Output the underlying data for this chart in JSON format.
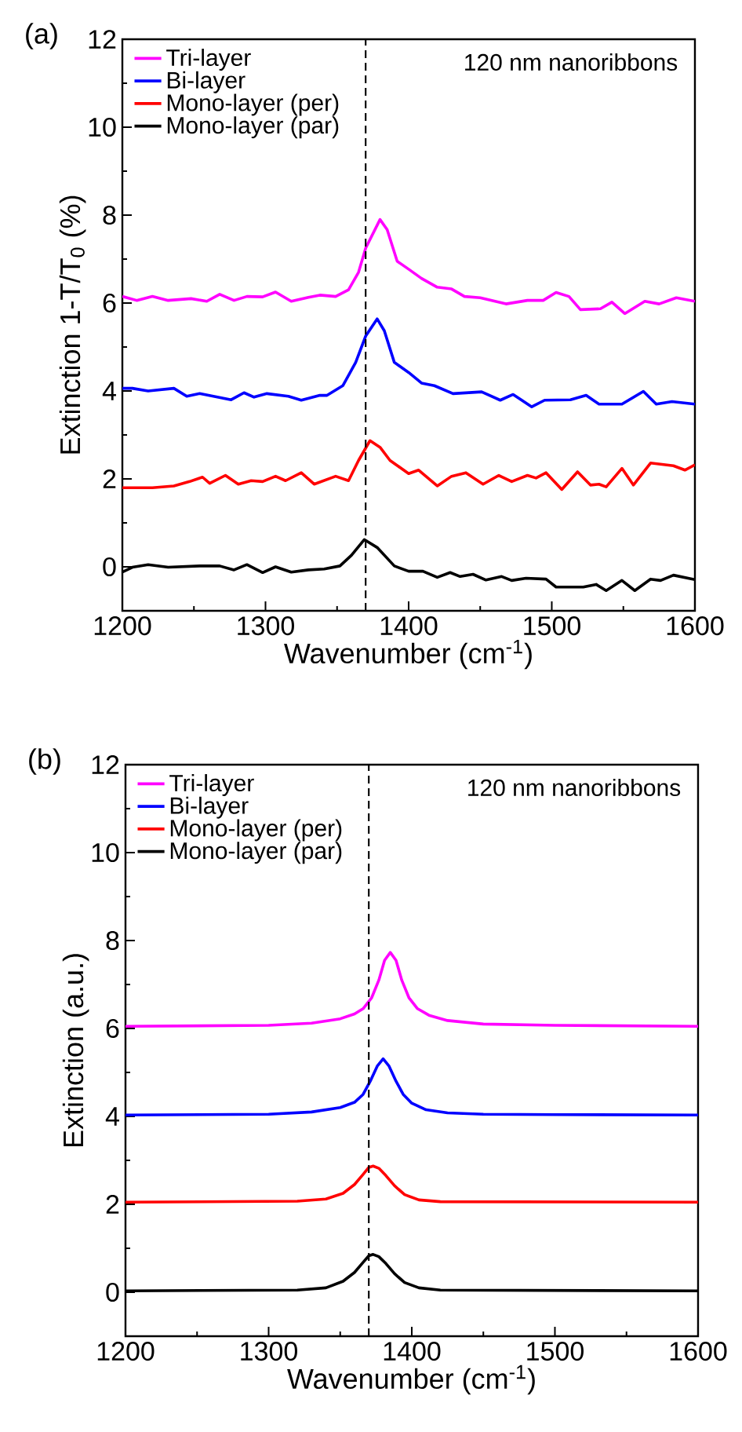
{
  "chart_data": [
    {
      "type": "line",
      "title": "(a)",
      "xlabel": "Wavenumber (cm$^{-1}$)",
      "ylabel": "Extinction 1-T/T$_{0}$ (%)",
      "xlim": [
        1200,
        1600
      ],
      "ylim": [
        -1,
        12
      ],
      "xticks": [
        1200,
        1300,
        1400,
        1500,
        1600
      ],
      "yticks": [
        0,
        2,
        4,
        6,
        8,
        10,
        12
      ],
      "legend": "top left",
      "line_style": "solid",
      "annotations": [
        "120 nm nanoribbons"
      ],
      "ref_lines": [
        {
          "axis": "x",
          "value": 1370,
          "color": "#000000",
          "line_style": "dashed"
        }
      ],
      "series": [
        {
          "name": "Tri-layer",
          "color": "#ff00ff",
          "x": [
            1200,
            1210,
            1221,
            1232,
            1248,
            1259,
            1268,
            1278,
            1287,
            1298,
            1307,
            1318,
            1330,
            1338,
            1349,
            1358,
            1365,
            1370,
            1380,
            1385,
            1392,
            1400,
            1409,
            1420,
            1430,
            1439,
            1450,
            1468,
            1483,
            1494,
            1503,
            1512,
            1520,
            1534,
            1542,
            1551,
            1565,
            1575,
            1587,
            1600
          ],
          "values": [
            6.15,
            6.06,
            6.15,
            6.06,
            6.1,
            6.04,
            6.2,
            6.06,
            6.15,
            6.14,
            6.25,
            6.04,
            6.13,
            6.18,
            6.15,
            6.3,
            6.7,
            7.25,
            7.9,
            7.67,
            6.95,
            6.77,
            6.56,
            6.36,
            6.32,
            6.15,
            6.12,
            5.98,
            6.06,
            6.06,
            6.24,
            6.15,
            5.85,
            5.87,
            6.02,
            5.76,
            6.04,
            5.98,
            6.12,
            6.04
          ]
        },
        {
          "name": "Bi-layer",
          "color": "#0000ff",
          "x": [
            1200,
            1207,
            1218,
            1236,
            1245,
            1254,
            1276,
            1285,
            1292,
            1301,
            1316,
            1325,
            1338,
            1343,
            1354,
            1363,
            1370,
            1378,
            1383,
            1390,
            1400,
            1409,
            1418,
            1431,
            1451,
            1464,
            1473,
            1486,
            1495,
            1513,
            1524,
            1533,
            1549,
            1564,
            1573,
            1584,
            1600
          ],
          "values": [
            4.06,
            4.06,
            4.0,
            4.06,
            3.88,
            3.94,
            3.8,
            3.96,
            3.86,
            3.94,
            3.88,
            3.79,
            3.9,
            3.9,
            4.12,
            4.65,
            5.25,
            5.64,
            5.37,
            4.65,
            4.42,
            4.18,
            4.12,
            3.94,
            3.98,
            3.79,
            3.92,
            3.64,
            3.79,
            3.8,
            3.9,
            3.7,
            3.7,
            3.99,
            3.7,
            3.76,
            3.7
          ]
        },
        {
          "name": "Mono-layer (per)",
          "color": "#ff0000",
          "x": [
            1200,
            1221,
            1236,
            1247,
            1256,
            1261,
            1272,
            1281,
            1290,
            1298,
            1307,
            1314,
            1325,
            1334,
            1349,
            1358,
            1365,
            1373,
            1380,
            1387,
            1400,
            1407,
            1420,
            1430,
            1440,
            1452,
            1463,
            1472,
            1483,
            1489,
            1496,
            1507,
            1518,
            1527,
            1533,
            1538,
            1549,
            1557,
            1569,
            1585,
            1593,
            1600
          ],
          "values": [
            1.8,
            1.8,
            1.84,
            1.94,
            2.04,
            1.9,
            2.08,
            1.88,
            1.96,
            1.94,
            2.06,
            1.96,
            2.14,
            1.88,
            2.06,
            1.96,
            2.42,
            2.87,
            2.72,
            2.42,
            2.12,
            2.2,
            1.84,
            2.06,
            2.14,
            1.88,
            2.08,
            1.94,
            2.08,
            2.02,
            2.14,
            1.76,
            2.16,
            1.86,
            1.88,
            1.82,
            2.24,
            1.86,
            2.36,
            2.3,
            2.2,
            2.32
          ]
        },
        {
          "name": "Mono-layer (par)",
          "color": "#000000",
          "x": [
            1200,
            1207,
            1218,
            1232,
            1254,
            1268,
            1278,
            1287,
            1298,
            1307,
            1318,
            1330,
            1341,
            1352,
            1360,
            1369,
            1378,
            1390,
            1400,
            1410,
            1420,
            1429,
            1436,
            1445,
            1454,
            1465,
            1472,
            1482,
            1496,
            1503,
            1522,
            1531,
            1538,
            1549,
            1558,
            1569,
            1576,
            1585,
            1600
          ],
          "values": [
            -0.12,
            -0.01,
            0.05,
            -0.01,
            0.02,
            0.02,
            -0.07,
            0.05,
            -0.13,
            0.0,
            -0.12,
            -0.07,
            -0.05,
            0.02,
            0.26,
            0.62,
            0.44,
            0.02,
            -0.1,
            -0.1,
            -0.24,
            -0.13,
            -0.22,
            -0.17,
            -0.3,
            -0.22,
            -0.31,
            -0.26,
            -0.28,
            -0.46,
            -0.46,
            -0.4,
            -0.54,
            -0.31,
            -0.54,
            -0.28,
            -0.31,
            -0.19,
            -0.29
          ]
        }
      ]
    },
    {
      "type": "line",
      "title": "(b)",
      "xlabel": "Wavenumber (cm$^{-1}$)",
      "ylabel": "Extinction (a.u.)",
      "xlim": [
        1200,
        1600
      ],
      "ylim": [
        -1,
        12
      ],
      "xticks": [
        1200,
        1300,
        1400,
        1500,
        1600
      ],
      "yticks": [
        0,
        2,
        4,
        6,
        8,
        10,
        12
      ],
      "legend": "top left",
      "line_style": "solid",
      "annotations": [
        "120 nm nanoribbons"
      ],
      "ref_lines": [
        {
          "axis": "x",
          "value": 1370,
          "color": "#000000",
          "line_style": "dashed"
        }
      ],
      "series": [
        {
          "name": "Tri-layer",
          "color": "#ff00ff",
          "x": [
            1200,
            1300,
            1330,
            1350,
            1360,
            1366,
            1372,
            1377,
            1381,
            1385,
            1389,
            1393,
            1398,
            1404,
            1412,
            1425,
            1450,
            1500,
            1600
          ],
          "values": [
            6.05,
            6.07,
            6.12,
            6.22,
            6.33,
            6.45,
            6.7,
            7.1,
            7.55,
            7.73,
            7.55,
            7.1,
            6.7,
            6.45,
            6.3,
            6.18,
            6.1,
            6.07,
            6.05
          ]
        },
        {
          "name": "Bi-layer",
          "color": "#0000ff",
          "x": [
            1200,
            1300,
            1330,
            1350,
            1360,
            1366,
            1371,
            1376,
            1380,
            1384,
            1389,
            1394,
            1400,
            1410,
            1425,
            1450,
            1500,
            1600
          ],
          "values": [
            4.03,
            4.05,
            4.1,
            4.2,
            4.32,
            4.5,
            4.8,
            5.15,
            5.31,
            5.15,
            4.8,
            4.5,
            4.3,
            4.15,
            4.08,
            4.05,
            4.04,
            4.03
          ]
        },
        {
          "name": "Mono-layer (per)",
          "color": "#ff0000",
          "x": [
            1200,
            1320,
            1340,
            1352,
            1360,
            1366,
            1370,
            1373,
            1377,
            1382,
            1388,
            1395,
            1405,
            1420,
            1600
          ],
          "values": [
            2.05,
            2.07,
            2.12,
            2.25,
            2.45,
            2.68,
            2.84,
            2.87,
            2.82,
            2.65,
            2.42,
            2.22,
            2.1,
            2.06,
            2.05
          ]
        },
        {
          "name": "Mono-layer (par)",
          "color": "#000000",
          "x": [
            1200,
            1320,
            1340,
            1352,
            1360,
            1366,
            1370,
            1373,
            1377,
            1382,
            1388,
            1395,
            1405,
            1420,
            1600
          ],
          "values": [
            0.03,
            0.05,
            0.1,
            0.25,
            0.45,
            0.68,
            0.83,
            0.86,
            0.81,
            0.65,
            0.42,
            0.22,
            0.1,
            0.05,
            0.03
          ]
        }
      ]
    }
  ]
}
